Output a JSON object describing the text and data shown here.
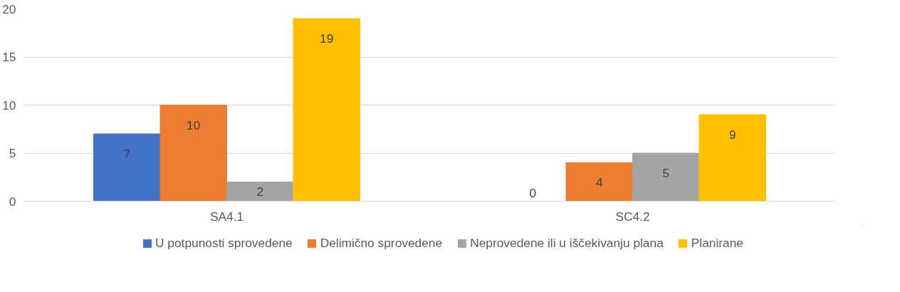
{
  "chart_data": {
    "type": "bar",
    "categories": [
      "SA4.1",
      "SC4.2"
    ],
    "series": [
      {
        "name": "U potpunosti sprovedene",
        "color": "#4472c4",
        "values": [
          7,
          0
        ]
      },
      {
        "name": "Delimično sprovedene",
        "color": "#ed7d31",
        "values": [
          10,
          4
        ]
      },
      {
        "name": "Neprovedene ili u iščekivanju plana",
        "color": "#a5a5a5",
        "values": [
          2,
          5
        ]
      },
      {
        "name": "Planirane",
        "color": "#ffc000",
        "values": [
          19,
          9
        ]
      }
    ],
    "ylim": [
      0,
      20
    ],
    "yticks": [
      0,
      5,
      10,
      15,
      20
    ],
    "grid": "y",
    "legend": "bottom",
    "data_labels": true
  }
}
